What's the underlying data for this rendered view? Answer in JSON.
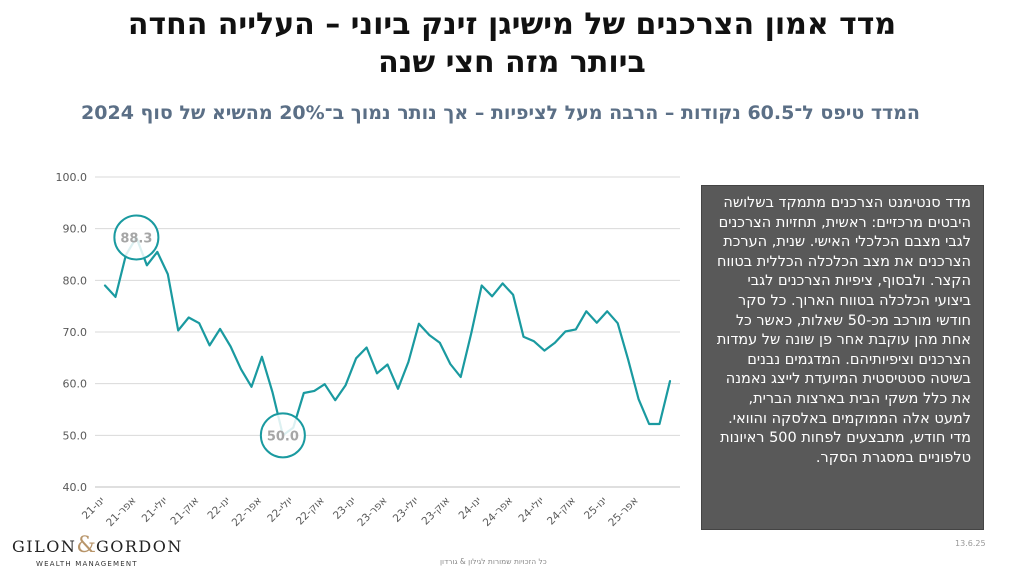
{
  "header": {
    "title_line1": "מדד אמון הצרכנים של מישיגן זינק ביוני – העלייה החדה",
    "title_line2": "ביותר מזה חצי שנה",
    "subtitle": "המדד טיפס ל־60.5 נקודות – הרבה מעל לציפיות – אך נותר נמוך ב־20% מהשיא של סוף 2024"
  },
  "info_box": {
    "text": "מדד סנטימנט הצרכנים מתמקד בשלושה היבטים מרכזיים: ראשית, תחזיות הצרכנים לגבי מצבם הכלכלי האישי. שנית, הערכת הצרכנים את מצב הכלכלה הכללית בטווח הקצר. ולבסוף, ציפיות הצרכנים לגבי ביצועי הכלכלה בטווח הארוך. כל סקר חודשי מורכב מכ-50 שאלות, כאשר כל אחת מהן עוקבת אחר פן שונה של עמדות הצרכנים וציפיותיהם. המדגמים נבנים בשיטה סטטיסטית המיועדת לייצג נאמנה את כלל משקי הבית בארצות הברית, למעט אלה הממוקמים באלסקה והוואי. מדי חודש, מתבצעים לפחות 500 ראיונות טלפוניים במסגרת הסקר."
  },
  "logo": {
    "name_left": "GILON",
    "amp": "&",
    "name_right": "GORDON",
    "tagline": "WEALTH MANAGEMENT"
  },
  "footer": {
    "copyright": "כל הזכויות שמורות לגילון & גורדון",
    "date": "13.6.25"
  },
  "colors": {
    "line": "#1a9aa0",
    "grid": "#d9d9d9",
    "axis_text": "#595959",
    "annotation_text": "#a6a6a6"
  },
  "chart_data": {
    "type": "line",
    "ylim": [
      40,
      100
    ],
    "y_ticks": [
      "40.0",
      "50.0",
      "60.0",
      "70.0",
      "80.0",
      "90.0",
      "100.0"
    ],
    "x_tick_labels": [
      "ינו-21",
      "אפר-21",
      "יולי-21",
      "אוק-21",
      "ינו-22",
      "אפר-22",
      "יולי-22",
      "אוק-22",
      "ינו-23",
      "אפר-23",
      "יולי-23",
      "אוק-23",
      "ינו-24",
      "אפר-24",
      "יולי-24",
      "אוק-24",
      "ינו-25",
      "אפר-25"
    ],
    "series": [
      {
        "values": [
          79.0,
          76.8,
          84.9,
          88.3,
          82.9,
          85.5,
          81.2,
          70.3,
          72.8,
          71.7,
          67.4,
          70.6,
          67.2,
          62.8,
          59.4,
          65.2,
          58.4,
          50.0,
          51.5,
          58.2,
          58.6,
          59.9,
          56.8,
          59.7,
          64.9,
          67.0,
          62.0,
          63.7,
          59.0,
          64.2,
          71.6,
          69.4,
          67.9,
          63.8,
          61.3,
          69.7,
          79.0,
          76.9,
          79.4,
          77.2,
          69.1,
          68.2,
          66.4,
          67.9,
          70.1,
          70.5,
          74.0,
          71.8,
          74.0,
          71.7,
          64.7,
          57.0,
          52.2,
          52.2,
          60.5
        ]
      }
    ],
    "annotations": [
      {
        "label": "88.3",
        "index": 3,
        "value": 88.3
      },
      {
        "label": "50.0",
        "index": 17,
        "value": 50.0
      }
    ]
  }
}
